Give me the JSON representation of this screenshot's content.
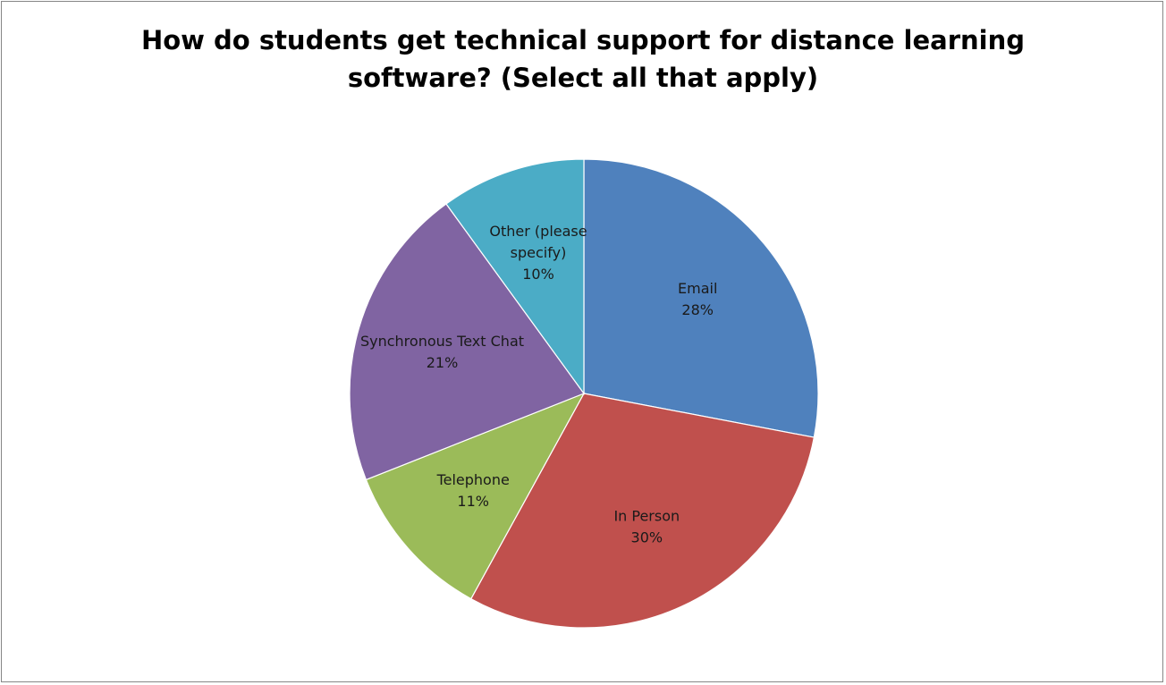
{
  "chart_data": {
    "type": "pie",
    "title_lines": [
      "How do students get technical support for distance learning",
      "software? (Select all that apply)"
    ],
    "slices": [
      {
        "name": "Email",
        "value": 28,
        "label_lines": [
          "Email",
          "28%"
        ],
        "color": "#4F81BD"
      },
      {
        "name": "In Person",
        "value": 30,
        "label_lines": [
          "In Person",
          "30%"
        ],
        "color": "#C0504D"
      },
      {
        "name": "Telephone",
        "value": 11,
        "label_lines": [
          "Telephone",
          "11%"
        ],
        "color": "#9BBB59"
      },
      {
        "name": "Synchronous Text Chat",
        "value": 21,
        "label_lines": [
          "Synchronous Text  Chat",
          "21%"
        ],
        "color": "#8064A2"
      },
      {
        "name": "Other (please specify)",
        "value": 10,
        "label_lines": [
          "Other (please",
          "specify)",
          "10%"
        ],
        "color": "#4BACC6"
      }
    ],
    "legend": "none",
    "start": "12 o'clock, clockwise",
    "border_color": "#868686"
  }
}
